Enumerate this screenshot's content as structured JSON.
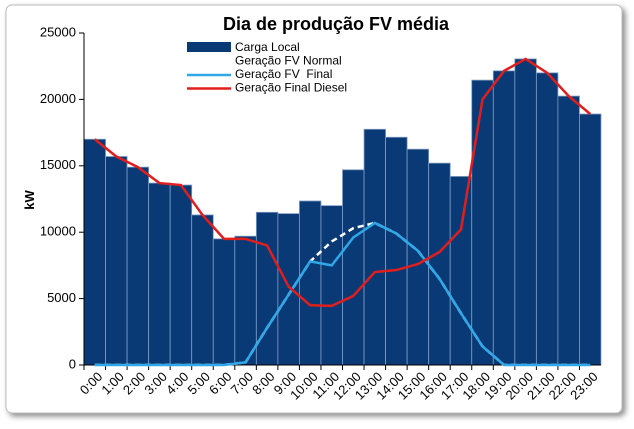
{
  "chart_data": {
    "type": "bar_line",
    "title": "Dia de produção FV média",
    "y_label": "kW",
    "categories": [
      "0:00",
      "1:00",
      "2:00",
      "3:00",
      "4:00",
      "5:00",
      "6:00",
      "7:00",
      "8:00",
      "9:00",
      "10:00",
      "11:00",
      "12:00",
      "13:00",
      "14:00",
      "15:00",
      "16:00",
      "17:00",
      "18:00",
      "19:00",
      "20:00",
      "21:00",
      "22:00",
      "23:00"
    ],
    "series": [
      {
        "name": "Carga Local",
        "kind": "bar",
        "color": "#0a3a75",
        "values": [
          17000,
          15700,
          14900,
          13700,
          13550,
          11300,
          9500,
          9700,
          11500,
          11400,
          12350,
          12000,
          14700,
          17750,
          17150,
          16250,
          15200,
          14200,
          21450,
          22150,
          23050,
          22000,
          20250,
          18900
        ]
      },
      {
        "name": "Geração FV Normal",
        "kind": "line",
        "dashed": true,
        "color": "#ffffff",
        "values": [
          0,
          0,
          0,
          0,
          0,
          0,
          0,
          200,
          2800,
          5300,
          7800,
          9300,
          10300,
          10700,
          9900,
          8600,
          6500,
          3900,
          1400,
          0,
          0,
          0,
          0,
          0
        ]
      },
      {
        "name": "Geração FV  Final",
        "kind": "line",
        "color": "#2ea8e8",
        "values": [
          0,
          0,
          0,
          0,
          0,
          0,
          0,
          200,
          2800,
          5300,
          7800,
          7500,
          9600,
          10700,
          9900,
          8600,
          6500,
          3900,
          1400,
          0,
          0,
          0,
          0,
          0
        ]
      },
      {
        "name": "Geração Final Diesel",
        "kind": "line",
        "color": "#e01e1e",
        "values": [
          17000,
          15700,
          14900,
          13700,
          13550,
          11300,
          9500,
          9500,
          9000,
          5900,
          4500,
          4450,
          5200,
          7000,
          7150,
          7600,
          8500,
          10200,
          20000,
          22150,
          23050,
          22000,
          20250,
          18900
        ]
      }
    ],
    "ylim": [
      0,
      25000
    ],
    "yticks": [
      0,
      5000,
      10000,
      15000,
      20000,
      25000
    ],
    "grid": false
  }
}
